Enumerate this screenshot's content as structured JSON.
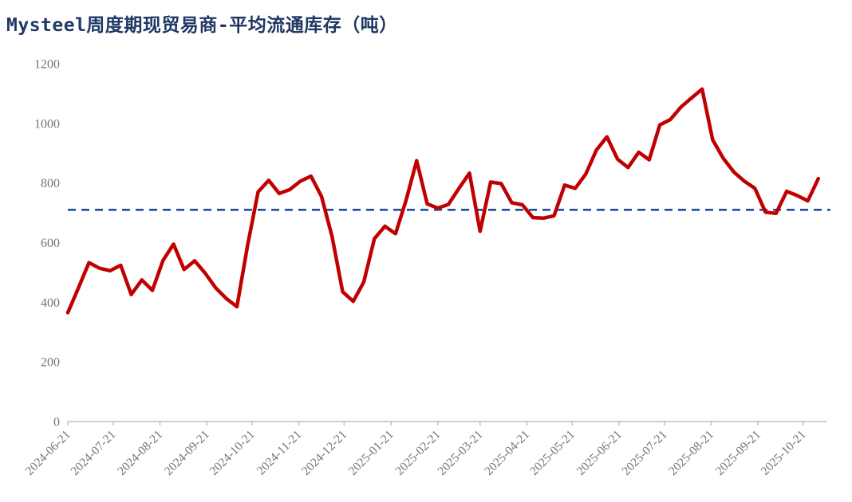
{
  "page": {
    "background": "#FFFFFF"
  },
  "chart_data": {
    "type": "line",
    "title": "Mysteel周度期现贸易商-平均流通库存（吨）",
    "title_color": "#1F3864",
    "xlabel": "",
    "ylabel": "",
    "grid": false,
    "legend": false,
    "ylim": [
      0,
      1200
    ],
    "yticks": [
      0,
      200,
      400,
      600,
      800,
      1000,
      1200
    ],
    "xticks": [
      "2024-06-21",
      "2024-07-21",
      "2024-08-21",
      "2024-09-21",
      "2024-10-21",
      "2024-11-21",
      "2024-12-21",
      "2025-01-21",
      "2025-02-21",
      "2025-03-21",
      "2025-04-21",
      "2025-05-21",
      "2025-06-21",
      "2025-07-21",
      "2025-08-21",
      "2025-09-21",
      "2025-10-21"
    ],
    "axis_color": "#BFBFBF",
    "tick_label_color": "#737373",
    "reference_line": {
      "value": 710,
      "color": "#1F4E9C",
      "style": "dashed"
    },
    "x": [
      "2024-06-21",
      "2024-06-28",
      "2024-07-05",
      "2024-07-12",
      "2024-07-19",
      "2024-07-26",
      "2024-08-02",
      "2024-08-09",
      "2024-08-16",
      "2024-08-23",
      "2024-08-30",
      "2024-09-06",
      "2024-09-13",
      "2024-09-20",
      "2024-09-27",
      "2024-10-04",
      "2024-10-11",
      "2024-10-18",
      "2024-10-25",
      "2024-11-01",
      "2024-11-08",
      "2024-11-15",
      "2024-11-22",
      "2024-11-29",
      "2024-12-06",
      "2024-12-13",
      "2024-12-20",
      "2024-12-27",
      "2025-01-03",
      "2025-01-10",
      "2025-01-17",
      "2025-01-24",
      "2025-01-31",
      "2025-02-07",
      "2025-02-14",
      "2025-02-21",
      "2025-02-28",
      "2025-03-07",
      "2025-03-14",
      "2025-03-21",
      "2025-03-28",
      "2025-04-04",
      "2025-04-11",
      "2025-04-18",
      "2025-04-25",
      "2025-05-02",
      "2025-05-09",
      "2025-05-16",
      "2025-05-23",
      "2025-05-30",
      "2025-06-06",
      "2025-06-13",
      "2025-06-20",
      "2025-06-27",
      "2025-07-04",
      "2025-07-11",
      "2025-07-18",
      "2025-07-25",
      "2025-08-01",
      "2025-08-08",
      "2025-08-15",
      "2025-08-22",
      "2025-08-29",
      "2025-09-05",
      "2025-09-12",
      "2025-09-19",
      "2025-09-26",
      "2025-10-03",
      "2025-10-10",
      "2025-10-17",
      "2025-10-24",
      "2025-10-31"
    ],
    "series": [
      {
        "name": "平均流通库存",
        "color": "#C00000",
        "values": [
          365,
          448,
          533,
          514,
          506,
          524,
          426,
          475,
          440,
          540,
          595,
          510,
          539,
          497,
          448,
          412,
          385,
          590,
          770,
          809,
          765,
          778,
          806,
          823,
          755,
          620,
          435,
          403,
          468,
          613,
          655,
          630,
          742,
          875,
          730,
          716,
          728,
          782,
          833,
          638,
          803,
          798,
          734,
          727,
          684,
          682,
          690,
          793,
          782,
          830,
          910,
          955,
          880,
          852,
          903,
          878,
          995,
          1013,
          1055,
          1085,
          1115,
          945,
          883,
          837,
          806,
          782,
          702,
          698,
          772,
          758,
          740,
          815
        ]
      }
    ]
  }
}
